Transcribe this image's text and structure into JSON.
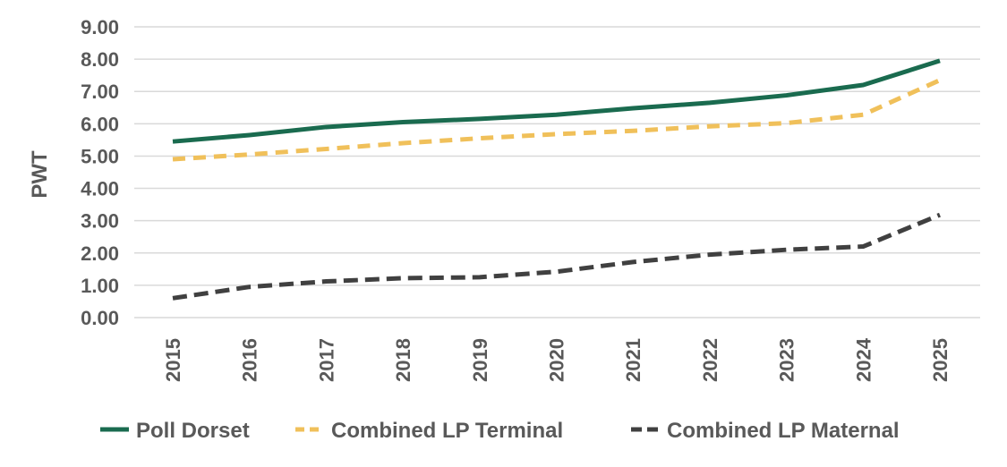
{
  "chart_data": {
    "type": "line",
    "title": "",
    "xlabel": "",
    "ylabel": "PWT",
    "ylim": [
      0,
      9
    ],
    "yticks": [
      "0.00",
      "1.00",
      "2.00",
      "3.00",
      "4.00",
      "5.00",
      "6.00",
      "7.00",
      "8.00",
      "9.00"
    ],
    "categories": [
      "2015",
      "2016",
      "2017",
      "2018",
      "2019",
      "2020",
      "2021",
      "2022",
      "2023",
      "2024",
      "2025"
    ],
    "grid": true,
    "legend_position": "bottom",
    "series": [
      {
        "name": "Poll Dorset",
        "color": "#1a6b4f",
        "style": "solid",
        "values": [
          5.45,
          5.65,
          5.9,
          6.05,
          6.15,
          6.28,
          6.48,
          6.65,
          6.88,
          7.2,
          7.95
        ]
      },
      {
        "name": "Combined LP Terminal",
        "color": "#f0c05a",
        "style": "dashed",
        "values": [
          4.9,
          5.05,
          5.22,
          5.4,
          5.55,
          5.68,
          5.78,
          5.92,
          6.02,
          6.28,
          7.35
        ]
      },
      {
        "name": "Combined LP Maternal",
        "color": "#404040",
        "style": "dashed",
        "values": [
          0.6,
          0.95,
          1.12,
          1.22,
          1.25,
          1.42,
          1.72,
          1.95,
          2.1,
          2.2,
          3.18
        ]
      }
    ]
  }
}
